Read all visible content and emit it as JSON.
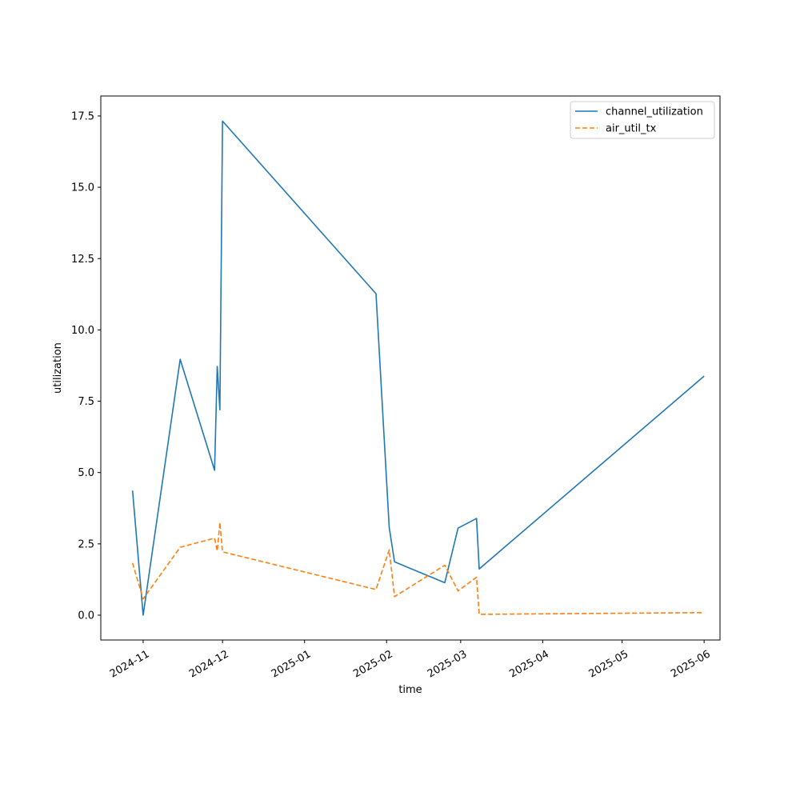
{
  "chart_data": {
    "type": "line",
    "title": "",
    "xlabel": "time",
    "ylabel": "utilization",
    "x_type": "date",
    "xlim": [
      "2024-10-16",
      "2025-06-07"
    ],
    "ylim": [
      -0.87,
      18.2
    ],
    "grid": false,
    "legend_position": "top-right",
    "x_ticks": [
      {
        "date": "2024-11-01",
        "label": "2024-11"
      },
      {
        "date": "2024-12-01",
        "label": "2024-12"
      },
      {
        "date": "2025-01-01",
        "label": "2025-01"
      },
      {
        "date": "2025-02-01",
        "label": "2025-02"
      },
      {
        "date": "2025-03-01",
        "label": "2025-03"
      },
      {
        "date": "2025-04-01",
        "label": "2025-04"
      },
      {
        "date": "2025-05-01",
        "label": "2025-05"
      },
      {
        "date": "2025-06-01",
        "label": "2025-06"
      }
    ],
    "y_ticks": [
      {
        "value": 0.0,
        "label": "0.0"
      },
      {
        "value": 2.5,
        "label": "2.5"
      },
      {
        "value": 5.0,
        "label": "5.0"
      },
      {
        "value": 7.5,
        "label": "7.5"
      },
      {
        "value": 10.0,
        "label": "10.0"
      },
      {
        "value": 12.5,
        "label": "12.5"
      },
      {
        "value": 15.0,
        "label": "15.0"
      },
      {
        "value": 17.5,
        "label": "17.5"
      }
    ],
    "series": [
      {
        "name": "channel_utilization",
        "color": "#1f77b4",
        "dash": "solid",
        "points": [
          {
            "x": "2024-10-28",
            "y": 4.37
          },
          {
            "x": "2024-11-01",
            "y": 0.0
          },
          {
            "x": "2024-11-15",
            "y": 8.97
          },
          {
            "x": "2024-11-28",
            "y": 5.08
          },
          {
            "x": "2024-11-29",
            "y": 8.72
          },
          {
            "x": "2024-11-30",
            "y": 7.2
          },
          {
            "x": "2024-12-01",
            "y": 17.32
          },
          {
            "x": "2025-01-28",
            "y": 11.27
          },
          {
            "x": "2025-02-02",
            "y": 3.07
          },
          {
            "x": "2025-02-04",
            "y": 1.87
          },
          {
            "x": "2025-02-23",
            "y": 1.14
          },
          {
            "x": "2025-02-28",
            "y": 3.05
          },
          {
            "x": "2025-03-07",
            "y": 3.39
          },
          {
            "x": "2025-03-08",
            "y": 1.62
          },
          {
            "x": "2025-06-01",
            "y": 8.38
          }
        ]
      },
      {
        "name": "air_util_tx",
        "color": "#ff7f0e",
        "dash": "dashed",
        "points": [
          {
            "x": "2024-10-28",
            "y": 1.83
          },
          {
            "x": "2024-11-01",
            "y": 0.57
          },
          {
            "x": "2024-11-15",
            "y": 2.38
          },
          {
            "x": "2024-11-28",
            "y": 2.7
          },
          {
            "x": "2024-11-29",
            "y": 2.25
          },
          {
            "x": "2024-11-30",
            "y": 3.25
          },
          {
            "x": "2024-12-01",
            "y": 2.22
          },
          {
            "x": "2025-01-28",
            "y": 0.9
          },
          {
            "x": "2025-02-02",
            "y": 2.29
          },
          {
            "x": "2025-02-04",
            "y": 0.65
          },
          {
            "x": "2025-02-23",
            "y": 1.75
          },
          {
            "x": "2025-02-28",
            "y": 0.85
          },
          {
            "x": "2025-03-07",
            "y": 1.33
          },
          {
            "x": "2025-03-08",
            "y": 0.03
          },
          {
            "x": "2025-06-01",
            "y": 0.09
          }
        ]
      }
    ]
  }
}
